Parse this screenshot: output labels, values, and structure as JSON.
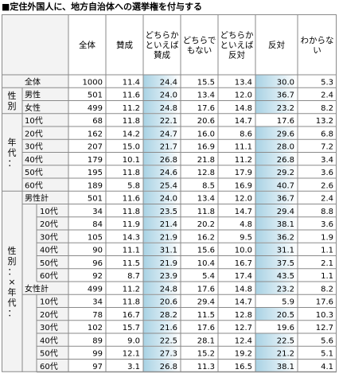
{
  "title": "■定住外国人に、地方自治体への選挙権を付与する",
  "headers": {
    "total": "全体",
    "favor": "賛成",
    "somewhat_favor": "どちらかといえば賛成",
    "neither": "どちらでもない",
    "somewhat_oppose": "どちらかといえば反対",
    "oppose": "反対",
    "unknown": "わからない"
  },
  "groups": {
    "gender": "性別",
    "age": "年代：",
    "gender_age": "性別：×年代："
  },
  "rows": [
    {
      "label": "全体",
      "n": "1000",
      "v": [
        "11.4",
        "24.4",
        "15.5",
        "13.4",
        "30.0",
        "5.3"
      ]
    },
    {
      "label": "男性",
      "n": "501",
      "v": [
        "11.6",
        "24.0",
        "13.4",
        "12.0",
        "36.7",
        "2.4"
      ]
    },
    {
      "label": "女性",
      "n": "499",
      "v": [
        "11.2",
        "24.8",
        "17.6",
        "14.8",
        "23.2",
        "8.2"
      ]
    },
    {
      "label": "10代",
      "n": "68",
      "v": [
        "11.8",
        "22.1",
        "20.6",
        "14.7",
        "17.6",
        "13.2"
      ]
    },
    {
      "label": "20代",
      "n": "162",
      "v": [
        "14.2",
        "24.7",
        "16.0",
        "8.6",
        "29.6",
        "6.8"
      ]
    },
    {
      "label": "30代",
      "n": "207",
      "v": [
        "15.0",
        "21.7",
        "16.9",
        "11.1",
        "28.0",
        "7.2"
      ]
    },
    {
      "label": "40代",
      "n": "179",
      "v": [
        "10.1",
        "26.8",
        "21.8",
        "11.2",
        "26.8",
        "3.4"
      ]
    },
    {
      "label": "50代",
      "n": "195",
      "v": [
        "11.8",
        "24.6",
        "12.8",
        "17.9",
        "29.2",
        "3.6"
      ]
    },
    {
      "label": "60代",
      "n": "189",
      "v": [
        "5.8",
        "25.4",
        "8.5",
        "16.9",
        "40.7",
        "2.6"
      ]
    },
    {
      "label": "男性計",
      "n": "501",
      "v": [
        "11.6",
        "24.0",
        "13.4",
        "12.0",
        "36.7",
        "2.4"
      ]
    },
    {
      "label": "10代",
      "n": "34",
      "v": [
        "11.8",
        "23.5",
        "11.8",
        "14.7",
        "29.4",
        "8.8"
      ]
    },
    {
      "label": "20代",
      "n": "84",
      "v": [
        "11.9",
        "21.4",
        "20.2",
        "4.8",
        "38.1",
        "3.6"
      ]
    },
    {
      "label": "30代",
      "n": "105",
      "v": [
        "14.3",
        "21.9",
        "16.2",
        "9.5",
        "36.2",
        "1.9"
      ]
    },
    {
      "label": "40代",
      "n": "90",
      "v": [
        "11.1",
        "31.1",
        "15.6",
        "10.0",
        "31.1",
        "1.1"
      ]
    },
    {
      "label": "50代",
      "n": "96",
      "v": [
        "11.5",
        "21.9",
        "10.4",
        "16.7",
        "37.5",
        "2.1"
      ]
    },
    {
      "label": "60代",
      "n": "92",
      "v": [
        "8.7",
        "23.9",
        "5.4",
        "17.4",
        "43.5",
        "1.1"
      ]
    },
    {
      "label": "女性計",
      "n": "499",
      "v": [
        "11.2",
        "24.8",
        "17.6",
        "14.8",
        "23.2",
        "8.2"
      ]
    },
    {
      "label": "10代",
      "n": "34",
      "v": [
        "11.8",
        "20.6",
        "29.4",
        "14.7",
        "5.9",
        "17.6"
      ]
    },
    {
      "label": "20代",
      "n": "78",
      "v": [
        "16.7",
        "28.2",
        "11.5",
        "12.8",
        "20.5",
        "10.3"
      ]
    },
    {
      "label": "30代",
      "n": "102",
      "v": [
        "15.7",
        "21.6",
        "17.6",
        "12.7",
        "19.6",
        "12.7"
      ]
    },
    {
      "label": "40代",
      "n": "89",
      "v": [
        "9.0",
        "22.5",
        "28.1",
        "12.4",
        "22.5",
        "5.6"
      ]
    },
    {
      "label": "50代",
      "n": "99",
      "v": [
        "12.1",
        "27.3",
        "15.2",
        "19.2",
        "21.2",
        "5.1"
      ]
    },
    {
      "label": "60代",
      "n": "97",
      "v": [
        "3.1",
        "26.8",
        "11.3",
        "16.5",
        "38.1",
        "4.1"
      ]
    }
  ],
  "colors": {
    "border": "#8a8a8a",
    "label_bg": "#f3f3f3",
    "highlight_start": "#a9d2e4",
    "highlight_end": "#ffffff",
    "text": "#000000"
  }
}
